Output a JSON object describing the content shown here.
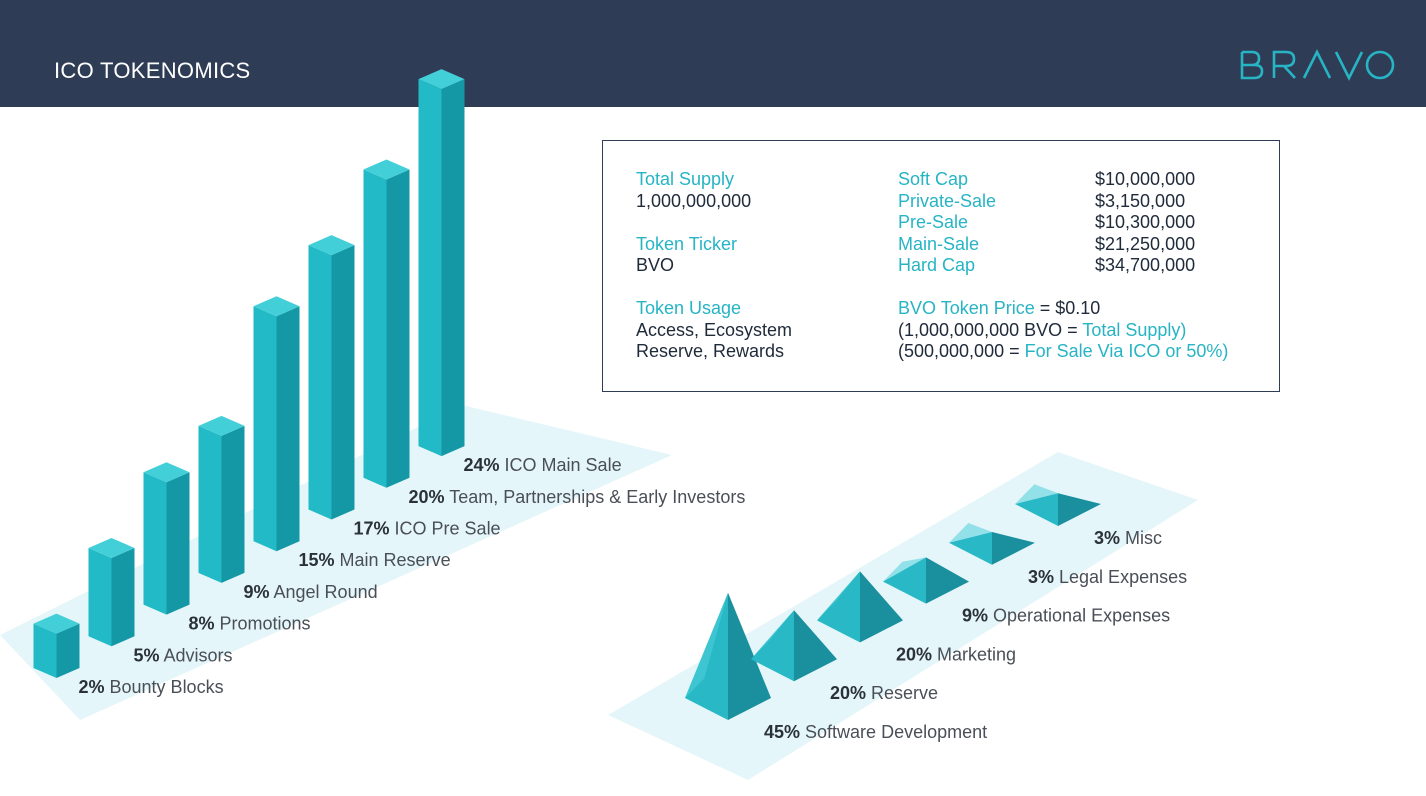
{
  "header": {
    "title": "ICO TOKENOMICS",
    "brand": "BRAVO"
  },
  "colors": {
    "header_bg": "#2e3d55",
    "accent": "#27b4c4",
    "platform": "#e4f6f9"
  },
  "info": {
    "total_supply_label": "Total Supply",
    "total_supply_value": "1,000,000,000",
    "ticker_label": "Token Ticker",
    "ticker_value": "BVO",
    "usage_label": "Token Usage",
    "usage_line1": "Access, Ecosystem",
    "usage_line2": "Reserve, Rewards",
    "caps": [
      {
        "label": "Soft Cap",
        "value": "$10,000,000"
      },
      {
        "label": "Private-Sale",
        "value": "$3,150,000"
      },
      {
        "label": "Pre-Sale",
        "value": "$10,300,000"
      },
      {
        "label": "Main-Sale",
        "value": "$21,250,000"
      },
      {
        "label": "Hard Cap",
        "value": "$34,700,000"
      }
    ],
    "price_label": "BVO Token Price",
    "price_eq": " = $0.10",
    "supply_note_open": "(1,000,000,000 BVO = ",
    "supply_note_teal": "Total Supply)",
    "sale_note_open": "(500,000,000 = ",
    "sale_note_teal": "For Sale Via ICO or 50%)"
  },
  "chart_data": [
    {
      "type": "bar",
      "title": "",
      "categories": [
        "Bounty Blocks",
        "Advisors",
        "Promotions",
        "Angel Round",
        "Main Reserve",
        "ICO Pre Sale",
        "Team, Partnerships & Early Investors",
        "ICO Main Sale"
      ],
      "values": [
        2,
        5,
        8,
        9,
        15,
        17,
        20,
        24
      ],
      "value_labels": [
        "2%",
        "5%",
        "8%",
        "9%",
        "15%",
        "17%",
        "20%",
        "24%"
      ],
      "unit": "%"
    },
    {
      "type": "bar",
      "title": "",
      "categories": [
        "Software Development",
        "Reserve",
        "Marketing",
        "Operational Expenses",
        "Legal Expenses",
        "Misc"
      ],
      "values": [
        45,
        20,
        20,
        9,
        3,
        3
      ],
      "value_labels": [
        "45%",
        "20%",
        "20%",
        "9%",
        "3%",
        "3%"
      ],
      "unit": "%"
    }
  ]
}
